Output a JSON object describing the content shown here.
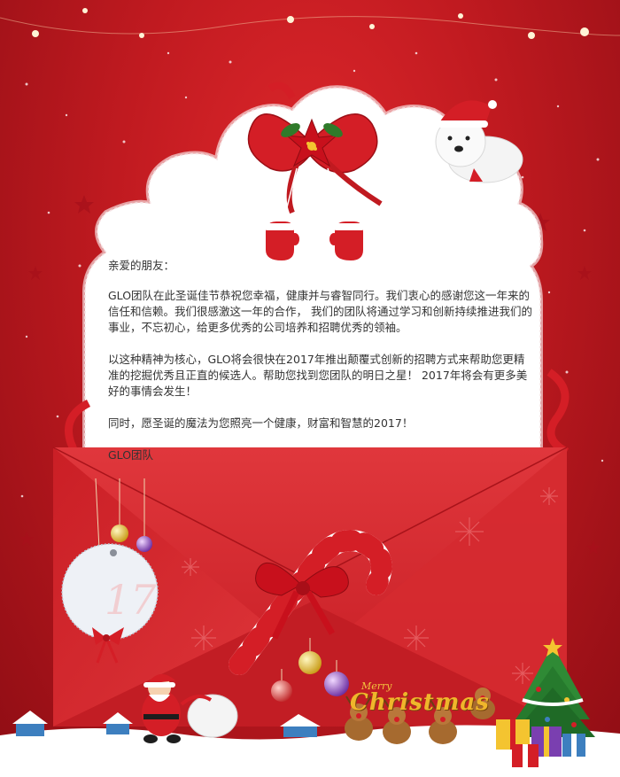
{
  "letter": {
    "greeting": "亲爱的朋友：",
    "paragraph1": "GLO团队在此圣诞佳节恭祝您幸福，健康并与睿智同行。我们衷心的感谢您这一年来的信任和信赖。我们很感激这一年的合作， 我们的团队将通过学习和创新持续推进我们的事业，不忘初心，给更多优秀的公司培养和招聘优秀的领袖。",
    "paragraph2": "以这种精神为核心，GLO将会很快在2017年推出颠覆式创新的招聘方式来帮助您更精准的挖掘优秀且正直的候选人。帮助您找到您团队的明日之星！ 2017年将会有更多美好的事情会发生！",
    "paragraph3": "同时，愿圣诞的魔法为您照亮一个健康，财富和智慧的2017！",
    "signature": "GLO团队"
  },
  "decoration": {
    "merry": "Merry",
    "christmas": "Christmas",
    "tag_number": "17"
  },
  "colors": {
    "background_red": "#c01a20",
    "envelope_red": "#d1232a",
    "ribbon_red": "#d41e26",
    "paper": "#ffffff",
    "gold_text": "#f0b62b"
  }
}
